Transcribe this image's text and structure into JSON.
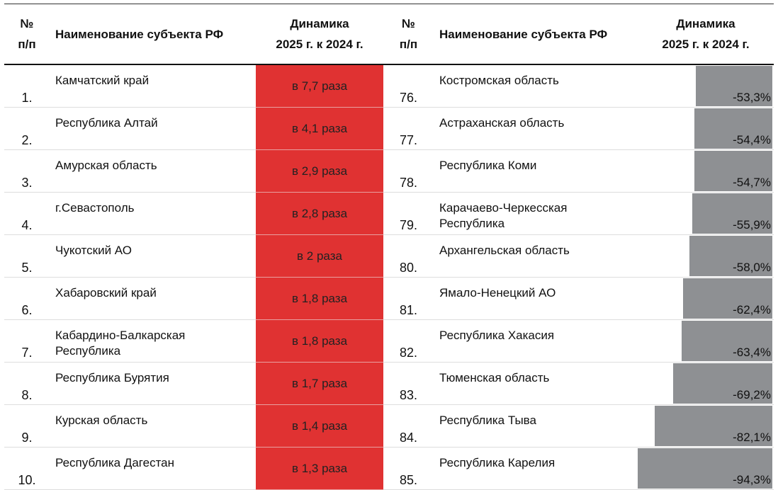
{
  "header": {
    "number_left": "№\nп/п",
    "name_left": "Наименование субъекта РФ",
    "change_left": "Динамика\n2025 г. к 2024 г.",
    "number_right": "№\nп/п",
    "name_right": "Наименование субъекта РФ",
    "change_right": "Динамика\n2025 г. к 2024 г."
  },
  "rows": [
    {
      "left": {
        "number": "1.",
        "name": "Камчатский край",
        "change": "в 7,7 раза"
      },
      "right": {
        "number": "76.",
        "name": "Костромская область",
        "change": {
          "value": -53.3,
          "label": "-53,3%"
        }
      }
    },
    {
      "left": {
        "number": "2.",
        "name": "Республика Алтай",
        "change": "в 4,1 раза"
      },
      "right": {
        "number": "77.",
        "name": "Астраханская область",
        "change": {
          "value": -54.4,
          "label": "-54,4%"
        }
      }
    },
    {
      "left": {
        "number": "3.",
        "name": "Амурская область",
        "change": "в 2,9 раза"
      },
      "right": {
        "number": "78.",
        "name": "Республика Коми",
        "change": {
          "value": -54.7,
          "label": "-54,7%"
        }
      }
    },
    {
      "left": {
        "number": "4.",
        "name": "г.Севастополь",
        "change": "в 2,8 раза"
      },
      "right": {
        "number": "79.",
        "name": "Карачаево-Черкесская Республика",
        "change": {
          "value": -55.9,
          "label": "-55,9%"
        }
      }
    },
    {
      "left": {
        "number": "5.",
        "name": "Чукотский АО",
        "change": "в 2 раза"
      },
      "right": {
        "number": "80.",
        "name": "Архангельская область",
        "change": {
          "value": -58.0,
          "label": "-58,0%"
        }
      }
    },
    {
      "left": {
        "number": "6.",
        "name": "Хабаровский край",
        "change": "в 1,8 раза"
      },
      "right": {
        "number": "81.",
        "name": "Ямало-Ненецкий АО",
        "change": {
          "value": -62.4,
          "label": "-62,4%"
        }
      }
    },
    {
      "left": {
        "number": "7.",
        "name": "Кабардино-Балкарская Республика",
        "change": "в 1,8 раза"
      },
      "right": {
        "number": "82.",
        "name": "Республика Хакасия",
        "change": {
          "value": -63.4,
          "label": "-63,4%"
        }
      }
    },
    {
      "left": {
        "number": "8.",
        "name": "Республика Бурятия",
        "change": "в 1,7 раза"
      },
      "right": {
        "number": "83.",
        "name": "Тюменская область",
        "change": {
          "value": -69.2,
          "label": "-69,2%"
        }
      }
    },
    {
      "left": {
        "number": "9.",
        "name": "Курская область",
        "change": "в 1,4 раза"
      },
      "right": {
        "number": "84.",
        "name": "Республика Тыва",
        "change": {
          "value": -82.1,
          "label": "-82,1%"
        }
      }
    },
    {
      "left": {
        "number": "10.",
        "name": "Республика Дагестан",
        "change": "в 1,3 раза"
      },
      "right": {
        "number": "85.",
        "name": "Республика Карелия",
        "change": {
          "value": -94.3,
          "label": "-94,3%"
        }
      }
    }
  ]
}
